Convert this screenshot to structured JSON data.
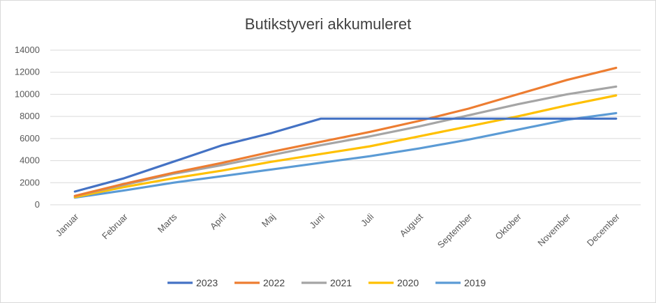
{
  "chart_data": {
    "type": "line",
    "title": "Butikstyveri akkumuleret",
    "xlabel": "",
    "ylabel": "",
    "ylim": [
      0,
      14000
    ],
    "yticks": [
      0,
      2000,
      4000,
      6000,
      8000,
      10000,
      12000,
      14000
    ],
    "ytick_labels": [
      "0",
      "2000",
      "4000",
      "6000",
      "8000",
      "10000",
      "12000",
      "14000"
    ],
    "categories": [
      "Januar",
      "Februar",
      "Marts",
      "April",
      "Maj",
      "Juni",
      "Juli",
      "August",
      "September",
      "Oktober",
      "November",
      "December"
    ],
    "grid": "horizontal",
    "legend_position": "bottom",
    "series": [
      {
        "name": "2023",
        "color": "#4472c4",
        "values": [
          1200,
          2400,
          3900,
          5400,
          6500,
          7800,
          7800,
          7800,
          7800,
          7800,
          7800,
          7800
        ]
      },
      {
        "name": "2022",
        "color": "#ed7d31",
        "values": [
          800,
          1900,
          2900,
          3800,
          4800,
          5700,
          6600,
          7600,
          8700,
          10000,
          11300,
          12400
        ]
      },
      {
        "name": "2021",
        "color": "#a5a5a5",
        "values": [
          800,
          1800,
          2800,
          3600,
          4500,
          5400,
          6200,
          7100,
          8100,
          9100,
          10000,
          10700
        ]
      },
      {
        "name": "2020",
        "color": "#ffc000",
        "values": [
          700,
          1600,
          2400,
          3100,
          3900,
          4600,
          5300,
          6200,
          7100,
          8000,
          9000,
          9900
        ]
      },
      {
        "name": "2019",
        "color": "#5b9bd5",
        "values": [
          650,
          1300,
          2000,
          2600,
          3200,
          3800,
          4400,
          5100,
          5900,
          6800,
          7700,
          8300
        ]
      }
    ]
  }
}
